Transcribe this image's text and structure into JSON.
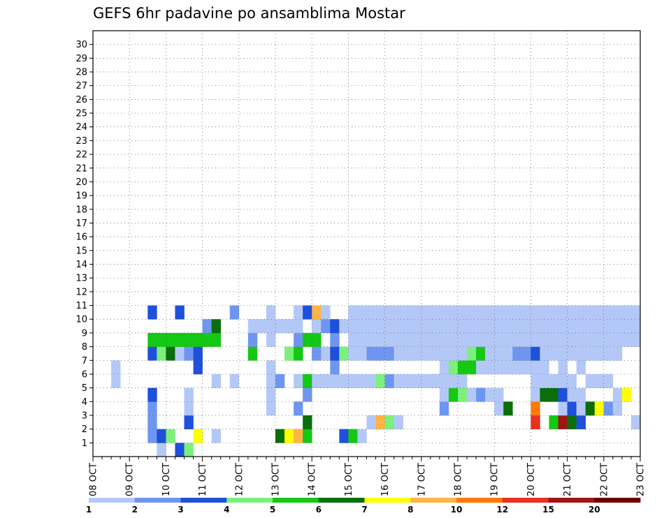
{
  "chart_data": {
    "type": "heatmap",
    "title": "GEFS 6hr padavine po ansamblima Mostar",
    "xlabel": "",
    "ylabel": "",
    "x_tick_labels": [
      "08 OCT",
      "09 OCT",
      "10 OCT",
      "11 OCT",
      "12 OCT",
      "13 OCT",
      "14 OCT",
      "15 OCT",
      "16 OCT",
      "17 OCT",
      "18 OCT",
      "19 OCT",
      "20 OCT",
      "21 OCT",
      "22 OCT",
      "23 OCT"
    ],
    "y_tick_labels": [
      "1",
      "2",
      "3",
      "4",
      "5",
      "6",
      "7",
      "8",
      "9",
      "10",
      "11",
      "12",
      "13",
      "14",
      "15",
      "16",
      "17",
      "18",
      "19",
      "20",
      "21",
      "22",
      "23",
      "24",
      "25",
      "26",
      "27",
      "28",
      "29",
      "30"
    ],
    "x_columns": 60,
    "members": 31,
    "grid": true,
    "colorbar": {
      "position": "bottom",
      "labels": [
        "1",
        "2",
        "3",
        "4",
        "5",
        "6",
        "7",
        "8",
        "10",
        "12",
        "15",
        "20"
      ],
      "colors": [
        "#b4c8f8",
        "#6e96f0",
        "#1e50dc",
        "#7cf07c",
        "#14c814",
        "#0a6e0a",
        "#ffff00",
        "#ffb446",
        "#ff780a",
        "#e6321e",
        "#a01414",
        "#6e0000"
      ]
    },
    "cells": [
      [
        0,
        7,
        1
      ],
      [
        0,
        9,
        3
      ],
      [
        0,
        10,
        4
      ],
      [
        1,
        6,
        2
      ],
      [
        1,
        7,
        3
      ],
      [
        1,
        8,
        4
      ],
      [
        1,
        11,
        7
      ],
      [
        1,
        13,
        1
      ],
      [
        1,
        20,
        6
      ],
      [
        1,
        21,
        7
      ],
      [
        1,
        22,
        8
      ],
      [
        1,
        23,
        5
      ],
      [
        1,
        27,
        3
      ],
      [
        1,
        28,
        5
      ],
      [
        1,
        29,
        1
      ],
      [
        2,
        6,
        2
      ],
      [
        2,
        10,
        3
      ],
      [
        2,
        23,
        6
      ],
      [
        2,
        30,
        1
      ],
      [
        2,
        31,
        8
      ],
      [
        2,
        32,
        4
      ],
      [
        2,
        33,
        1
      ],
      [
        2,
        48,
        10
      ],
      [
        2,
        50,
        5
      ],
      [
        2,
        51,
        11
      ],
      [
        2,
        52,
        6
      ],
      [
        2,
        53,
        3
      ],
      [
        2,
        59,
        1
      ],
      [
        3,
        6,
        2
      ],
      [
        3,
        10,
        1
      ],
      [
        3,
        19,
        1
      ],
      [
        3,
        22,
        2
      ],
      [
        3,
        38,
        2
      ],
      [
        3,
        44,
        1
      ],
      [
        3,
        45,
        6
      ],
      [
        3,
        48,
        9
      ],
      [
        3,
        51,
        1
      ],
      [
        3,
        52,
        3
      ],
      [
        3,
        53,
        1
      ],
      [
        3,
        54,
        6
      ],
      [
        3,
        55,
        7
      ],
      [
        3,
        56,
        2
      ],
      [
        3,
        57,
        1
      ],
      [
        4,
        6,
        3
      ],
      [
        4,
        10,
        1
      ],
      [
        4,
        19,
        1
      ],
      [
        4,
        23,
        2
      ],
      [
        4,
        38,
        1
      ],
      [
        4,
        39,
        5
      ],
      [
        4,
        40,
        4
      ],
      [
        4,
        41,
        1
      ],
      [
        4,
        42,
        2
      ],
      [
        4,
        43,
        1
      ],
      [
        4,
        44,
        1
      ],
      [
        4,
        48,
        1
      ],
      [
        4,
        49,
        6
      ],
      [
        4,
        50,
        6
      ],
      [
        4,
        51,
        3
      ],
      [
        4,
        52,
        1
      ],
      [
        4,
        53,
        1
      ],
      [
        4,
        57,
        1
      ],
      [
        4,
        58,
        7
      ],
      [
        5,
        2,
        1
      ],
      [
        5,
        13,
        1
      ],
      [
        5,
        15,
        1
      ],
      [
        5,
        19,
        1
      ],
      [
        5,
        20,
        2
      ],
      [
        5,
        22,
        1
      ],
      [
        5,
        23,
        5
      ],
      [
        5,
        24,
        1
      ],
      [
        5,
        25,
        1
      ],
      [
        5,
        26,
        1
      ],
      [
        5,
        27,
        1
      ],
      [
        5,
        28,
        1
      ],
      [
        5,
        29,
        1
      ],
      [
        5,
        30,
        1
      ],
      [
        5,
        31,
        4
      ],
      [
        5,
        32,
        2
      ],
      [
        5,
        33,
        1
      ],
      [
        5,
        34,
        1
      ],
      [
        5,
        35,
        1
      ],
      [
        5,
        36,
        1
      ],
      [
        5,
        37,
        1
      ],
      [
        5,
        38,
        1
      ],
      [
        5,
        39,
        1
      ],
      [
        5,
        40,
        1
      ],
      [
        5,
        48,
        1
      ],
      [
        5,
        49,
        1
      ],
      [
        5,
        50,
        1
      ],
      [
        5,
        51,
        1
      ],
      [
        5,
        52,
        1
      ],
      [
        5,
        54,
        1
      ],
      [
        5,
        55,
        1
      ],
      [
        5,
        56,
        1
      ],
      [
        6,
        2,
        1
      ],
      [
        6,
        11,
        3
      ],
      [
        6,
        19,
        1
      ],
      [
        6,
        26,
        2
      ],
      [
        6,
        38,
        1
      ],
      [
        6,
        39,
        4
      ],
      [
        6,
        40,
        5
      ],
      [
        6,
        41,
        5
      ],
      [
        6,
        42,
        1
      ],
      [
        6,
        43,
        1
      ],
      [
        6,
        44,
        1
      ],
      [
        6,
        45,
        1
      ],
      [
        6,
        46,
        1
      ],
      [
        6,
        47,
        1
      ],
      [
        6,
        48,
        1
      ],
      [
        6,
        49,
        1
      ],
      [
        6,
        51,
        1
      ],
      [
        6,
        53,
        1
      ],
      [
        7,
        6,
        3
      ],
      [
        7,
        7,
        4
      ],
      [
        7,
        8,
        6
      ],
      [
        7,
        9,
        1
      ],
      [
        7,
        10,
        2
      ],
      [
        7,
        11,
        3
      ],
      [
        7,
        17,
        5
      ],
      [
        7,
        21,
        4
      ],
      [
        7,
        22,
        5
      ],
      [
        7,
        24,
        2
      ],
      [
        7,
        25,
        1
      ],
      [
        7,
        26,
        3
      ],
      [
        7,
        27,
        4
      ],
      [
        7,
        28,
        1
      ],
      [
        7,
        29,
        1
      ],
      [
        7,
        30,
        2
      ],
      [
        7,
        31,
        2
      ],
      [
        7,
        32,
        2
      ],
      [
        7,
        33,
        1
      ],
      [
        7,
        34,
        1
      ],
      [
        7,
        35,
        1
      ],
      [
        7,
        36,
        1
      ],
      [
        7,
        37,
        1
      ],
      [
        7,
        38,
        1
      ],
      [
        7,
        39,
        1
      ],
      [
        7,
        40,
        1
      ],
      [
        7,
        41,
        4
      ],
      [
        7,
        42,
        5
      ],
      [
        7,
        43,
        1
      ],
      [
        7,
        44,
        1
      ],
      [
        7,
        45,
        1
      ],
      [
        7,
        46,
        2
      ],
      [
        7,
        47,
        2
      ],
      [
        7,
        48,
        3
      ],
      [
        7,
        49,
        1
      ],
      [
        7,
        50,
        1
      ],
      [
        7,
        51,
        1
      ],
      [
        7,
        52,
        1
      ],
      [
        7,
        53,
        1
      ],
      [
        7,
        54,
        1
      ],
      [
        7,
        55,
        1
      ],
      [
        7,
        56,
        1
      ],
      [
        7,
        57,
        1
      ],
      [
        8,
        6,
        5
      ],
      [
        8,
        7,
        5
      ],
      [
        8,
        8,
        5
      ],
      [
        8,
        9,
        5
      ],
      [
        8,
        10,
        5
      ],
      [
        8,
        11,
        5
      ],
      [
        8,
        12,
        5
      ],
      [
        8,
        13,
        5
      ],
      [
        8,
        17,
        2
      ],
      [
        8,
        19,
        1
      ],
      [
        8,
        22,
        2
      ],
      [
        8,
        23,
        5
      ],
      [
        8,
        24,
        5
      ],
      [
        8,
        26,
        2
      ],
      [
        8,
        28,
        1
      ],
      [
        8,
        29,
        1
      ],
      [
        8,
        30,
        1
      ],
      [
        8,
        31,
        1
      ],
      [
        8,
        32,
        1
      ],
      [
        8,
        33,
        1
      ],
      [
        8,
        34,
        1
      ],
      [
        8,
        35,
        1
      ],
      [
        8,
        36,
        1
      ],
      [
        8,
        37,
        1
      ],
      [
        8,
        38,
        1
      ],
      [
        8,
        39,
        1
      ],
      [
        8,
        40,
        1
      ],
      [
        8,
        41,
        1
      ],
      [
        8,
        42,
        1
      ],
      [
        8,
        43,
        1
      ],
      [
        8,
        44,
        1
      ],
      [
        8,
        45,
        1
      ],
      [
        8,
        46,
        1
      ],
      [
        8,
        47,
        1
      ],
      [
        8,
        48,
        1
      ],
      [
        8,
        49,
        1
      ],
      [
        8,
        50,
        1
      ],
      [
        8,
        51,
        1
      ],
      [
        8,
        52,
        1
      ],
      [
        8,
        53,
        1
      ],
      [
        8,
        54,
        1
      ],
      [
        8,
        55,
        1
      ],
      [
        8,
        56,
        1
      ],
      [
        8,
        57,
        1
      ],
      [
        8,
        58,
        1
      ],
      [
        8,
        59,
        1
      ],
      [
        9,
        12,
        2
      ],
      [
        9,
        13,
        6
      ],
      [
        9,
        17,
        1
      ],
      [
        9,
        18,
        1
      ],
      [
        9,
        19,
        1
      ],
      [
        9,
        20,
        1
      ],
      [
        9,
        21,
        1
      ],
      [
        9,
        22,
        1
      ],
      [
        9,
        24,
        1
      ],
      [
        9,
        25,
        2
      ],
      [
        9,
        26,
        3
      ],
      [
        9,
        27,
        1
      ],
      [
        9,
        28,
        1
      ],
      [
        9,
        29,
        1
      ],
      [
        9,
        30,
        1
      ],
      [
        9,
        31,
        1
      ],
      [
        9,
        32,
        1
      ],
      [
        9,
        33,
        1
      ],
      [
        9,
        34,
        1
      ],
      [
        9,
        35,
        1
      ],
      [
        9,
        36,
        1
      ],
      [
        9,
        37,
        1
      ],
      [
        9,
        38,
        1
      ],
      [
        9,
        39,
        1
      ],
      [
        9,
        40,
        1
      ],
      [
        9,
        41,
        1
      ],
      [
        9,
        42,
        1
      ],
      [
        9,
        43,
        1
      ],
      [
        9,
        44,
        1
      ],
      [
        9,
        45,
        1
      ],
      [
        9,
        46,
        1
      ],
      [
        9,
        47,
        1
      ],
      [
        9,
        48,
        1
      ],
      [
        9,
        49,
        1
      ],
      [
        9,
        50,
        1
      ],
      [
        9,
        51,
        1
      ],
      [
        9,
        52,
        1
      ],
      [
        9,
        53,
        1
      ],
      [
        9,
        54,
        1
      ],
      [
        9,
        55,
        1
      ],
      [
        9,
        56,
        1
      ],
      [
        9,
        57,
        1
      ],
      [
        9,
        58,
        1
      ],
      [
        9,
        59,
        1
      ],
      [
        10,
        6,
        3
      ],
      [
        10,
        9,
        3
      ],
      [
        10,
        15,
        2
      ],
      [
        10,
        19,
        1
      ],
      [
        10,
        22,
        1
      ],
      [
        10,
        23,
        3
      ],
      [
        10,
        24,
        8
      ],
      [
        10,
        25,
        1
      ],
      [
        10,
        28,
        1
      ],
      [
        10,
        29,
        1
      ],
      [
        10,
        30,
        1
      ],
      [
        10,
        31,
        1
      ],
      [
        10,
        32,
        1
      ],
      [
        10,
        33,
        1
      ],
      [
        10,
        34,
        1
      ],
      [
        10,
        35,
        1
      ],
      [
        10,
        36,
        1
      ],
      [
        10,
        37,
        1
      ],
      [
        10,
        38,
        1
      ],
      [
        10,
        39,
        1
      ],
      [
        10,
        40,
        1
      ],
      [
        10,
        41,
        1
      ],
      [
        10,
        42,
        1
      ],
      [
        10,
        43,
        1
      ],
      [
        10,
        44,
        1
      ],
      [
        10,
        45,
        1
      ],
      [
        10,
        46,
        1
      ],
      [
        10,
        47,
        1
      ],
      [
        10,
        48,
        1
      ],
      [
        10,
        49,
        1
      ],
      [
        10,
        50,
        1
      ],
      [
        10,
        51,
        1
      ],
      [
        10,
        52,
        1
      ],
      [
        10,
        53,
        1
      ],
      [
        10,
        54,
        1
      ],
      [
        10,
        55,
        1
      ],
      [
        10,
        56,
        1
      ],
      [
        10,
        57,
        1
      ],
      [
        10,
        58,
        1
      ],
      [
        10,
        59,
        1
      ]
    ]
  }
}
